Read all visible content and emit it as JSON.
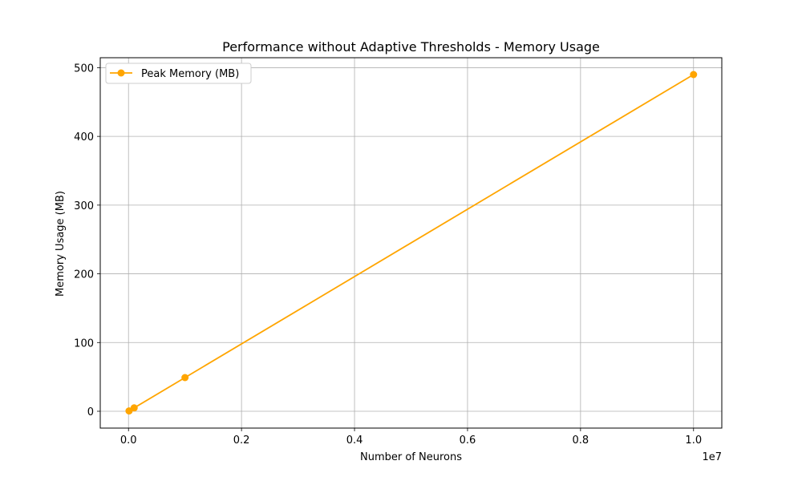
{
  "chart_data": {
    "type": "line",
    "title": "Performance without Adaptive Thresholds - Memory Usage",
    "xlabel": "Number of Neurons",
    "ylabel": "Memory Usage (MB)",
    "x_offset_text": "1e7",
    "x_ticks": [
      0.0,
      0.2,
      0.4,
      0.6,
      0.8,
      1.0
    ],
    "x_tick_labels": [
      "0.0",
      "0.2",
      "0.4",
      "0.6",
      "0.8",
      "1.0"
    ],
    "y_ticks": [
      0,
      100,
      200,
      300,
      400,
      500
    ],
    "y_tick_labels": [
      "0",
      "100",
      "200",
      "300",
      "400",
      "500"
    ],
    "xlim": [
      -0.05,
      1.05
    ],
    "ylim": [
      -24.5,
      514.5
    ],
    "grid": true,
    "legend_position": "top-left",
    "series": [
      {
        "name": "Peak Memory (MB)",
        "color": "#ffa500",
        "marker": "circle",
        "x": [
          0.001,
          0.01,
          0.1,
          1.0
        ],
        "y": [
          0.49,
          4.9,
          49,
          490
        ]
      }
    ]
  }
}
